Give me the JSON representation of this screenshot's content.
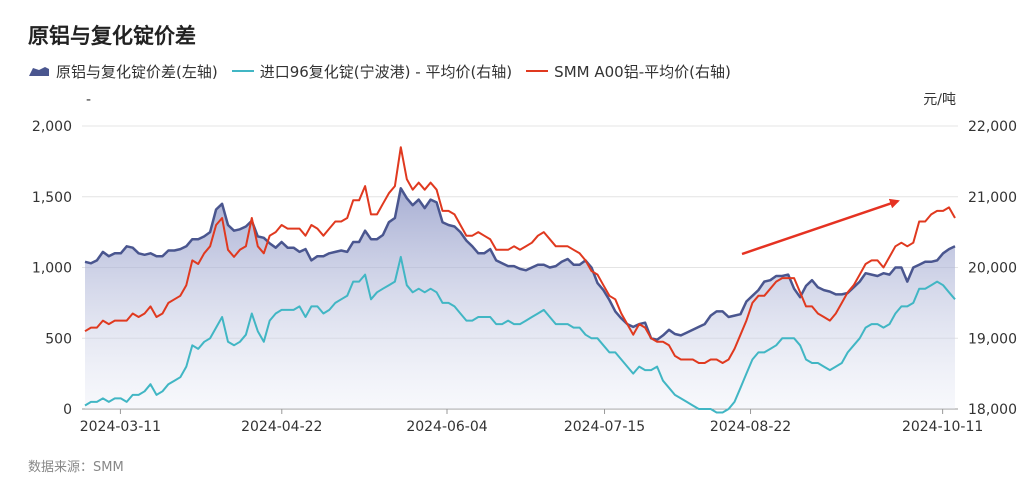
{
  "title": "原铝与复化锭价差",
  "legend": [
    {
      "name": "原铝与复化锭价差(左轴)",
      "color": "#4a568f",
      "marker": "area"
    },
    {
      "name": "进口96复化锭(宁波港) - 平均价(右轴)",
      "color": "#41b6c4",
      "marker": "line"
    },
    {
      "name": "SMM A00铝-平均价(右轴)",
      "color": "#e0391f",
      "marker": "line"
    }
  ],
  "left_axis_unit": "-",
  "right_axis_unit": "元/吨",
  "source": "数据来源：SMM",
  "chart_data": {
    "type": "line",
    "title": "原铝与复化锭价差",
    "x_tick_labels": [
      "2024-03-11",
      "2024-04-22",
      "2024-06-04",
      "2024-07-15",
      "2024-08-22",
      "2024-10-11"
    ],
    "x_start": "2024-03-01",
    "x_end": "2024-10-15",
    "left_axis": {
      "ylim": [
        0,
        2000
      ],
      "ticks": [
        "0",
        "500",
        "1,000",
        "1,500",
        "2,000"
      ]
    },
    "right_axis": {
      "ylim": [
        18000,
        22000
      ],
      "ticks": [
        "18,000",
        "19,000",
        "20,000",
        "21,000",
        "22,000"
      ]
    },
    "grid": true,
    "legend_position": "top-left",
    "annotation": "red upward arrow near late September–October",
    "series": [
      {
        "name": "原铝与复化锭价差(左轴)",
        "axis": "left",
        "type": "area",
        "color": "#4a568f",
        "values": [
          1040,
          1030,
          1050,
          1110,
          1080,
          1100,
          1100,
          1150,
          1140,
          1100,
          1090,
          1100,
          1080,
          1080,
          1120,
          1120,
          1130,
          1150,
          1200,
          1200,
          1220,
          1250,
          1410,
          1450,
          1300,
          1260,
          1270,
          1290,
          1330,
          1220,
          1210,
          1170,
          1140,
          1180,
          1140,
          1140,
          1110,
          1130,
          1050,
          1080,
          1080,
          1100,
          1110,
          1120,
          1110,
          1180,
          1180,
          1260,
          1200,
          1200,
          1230,
          1320,
          1350,
          1560,
          1490,
          1440,
          1480,
          1420,
          1480,
          1460,
          1320,
          1300,
          1290,
          1250,
          1190,
          1150,
          1100,
          1100,
          1130,
          1050,
          1030,
          1010,
          1010,
          990,
          980,
          1000,
          1020,
          1020,
          1000,
          1010,
          1040,
          1060,
          1020,
          1020,
          1050,
          1000,
          890,
          840,
          770,
          690,
          640,
          600,
          580,
          600,
          610,
          500,
          490,
          520,
          560,
          530,
          520,
          540,
          560,
          580,
          600,
          660,
          690,
          690,
          650,
          660,
          670,
          760,
          800,
          840,
          900,
          910,
          940,
          940,
          950,
          850,
          790,
          870,
          910,
          860,
          840,
          830,
          810,
          810,
          820,
          860,
          900,
          960,
          950,
          940,
          960,
          950,
          1000,
          1000,
          900,
          1000,
          1020,
          1040,
          1040,
          1050,
          1100,
          1130,
          1150
        ]
      },
      {
        "name": "进口96复化锭(宁波港) - 平均价(右轴)",
        "axis": "right",
        "type": "line",
        "color": "#41b6c4",
        "values": [
          18050,
          18100,
          18100,
          18150,
          18100,
          18150,
          18150,
          18100,
          18200,
          18200,
          18250,
          18350,
          18200,
          18250,
          18350,
          18400,
          18450,
          18600,
          18900,
          18850,
          18950,
          19000,
          19150,
          19300,
          18950,
          18900,
          18950,
          19050,
          19350,
          19100,
          18950,
          19250,
          19350,
          19400,
          19400,
          19400,
          19450,
          19300,
          19450,
          19450,
          19350,
          19400,
          19500,
          19550,
          19600,
          19800,
          19800,
          19900,
          19550,
          19650,
          19700,
          19750,
          19800,
          20150,
          19750,
          19650,
          19700,
          19650,
          19700,
          19650,
          19500,
          19500,
          19450,
          19350,
          19250,
          19250,
          19300,
          19300,
          19300,
          19200,
          19200,
          19250,
          19200,
          19200,
          19250,
          19300,
          19350,
          19400,
          19300,
          19200,
          19200,
          19200,
          19150,
          19150,
          19050,
          19000,
          19000,
          18900,
          18800,
          18800,
          18700,
          18600,
          18500,
          18600,
          18550,
          18550,
          18600,
          18400,
          18300,
          18200,
          18150,
          18100,
          18050,
          18000,
          18000,
          18000,
          17950,
          17950,
          18000,
          18100,
          18300,
          18500,
          18700,
          18800,
          18800,
          18850,
          18900,
          19000,
          19000,
          19000,
          18900,
          18700,
          18650,
          18650,
          18600,
          18550,
          18600,
          18650,
          18800,
          18900,
          19000,
          19150,
          19200,
          19200,
          19150,
          19200,
          19350,
          19450,
          19450,
          19500,
          19700,
          19700,
          19750,
          19800,
          19750,
          19650,
          19550
        ]
      },
      {
        "name": "SMM A00铝-平均价(右轴)",
        "axis": "right",
        "type": "line",
        "color": "#e0391f",
        "values": [
          19100,
          19150,
          19150,
          19250,
          19200,
          19250,
          19250,
          19250,
          19350,
          19300,
          19350,
          19450,
          19300,
          19350,
          19500,
          19550,
          19600,
          19750,
          20100,
          20050,
          20200,
          20300,
          20600,
          20700,
          20250,
          20150,
          20250,
          20300,
          20700,
          20300,
          20200,
          20450,
          20500,
          20600,
          20550,
          20550,
          20550,
          20450,
          20600,
          20550,
          20450,
          20550,
          20650,
          20650,
          20700,
          20950,
          20950,
          21150,
          20750,
          20750,
          20900,
          21050,
          21150,
          21700,
          21250,
          21100,
          21200,
          21100,
          21200,
          21100,
          20800,
          20800,
          20750,
          20600,
          20450,
          20450,
          20500,
          20450,
          20400,
          20250,
          20250,
          20250,
          20300,
          20250,
          20300,
          20350,
          20450,
          20500,
          20400,
          20300,
          20300,
          20300,
          20250,
          20200,
          20100,
          19950,
          19900,
          19750,
          19600,
          19550,
          19350,
          19200,
          19050,
          19200,
          19150,
          19000,
          18950,
          18950,
          18900,
          18750,
          18700,
          18700,
          18700,
          18650,
          18650,
          18700,
          18700,
          18650,
          18700,
          18850,
          19050,
          19250,
          19500,
          19600,
          19600,
          19700,
          19800,
          19850,
          19850,
          19850,
          19650,
          19450,
          19450,
          19350,
          19300,
          19250,
          19350,
          19500,
          19650,
          19750,
          19900,
          20050,
          20100,
          20100,
          20000,
          20150,
          20300,
          20350,
          20300,
          20350,
          20650,
          20650,
          20750,
          20800,
          20800,
          20850,
          20700
        ]
      }
    ]
  }
}
